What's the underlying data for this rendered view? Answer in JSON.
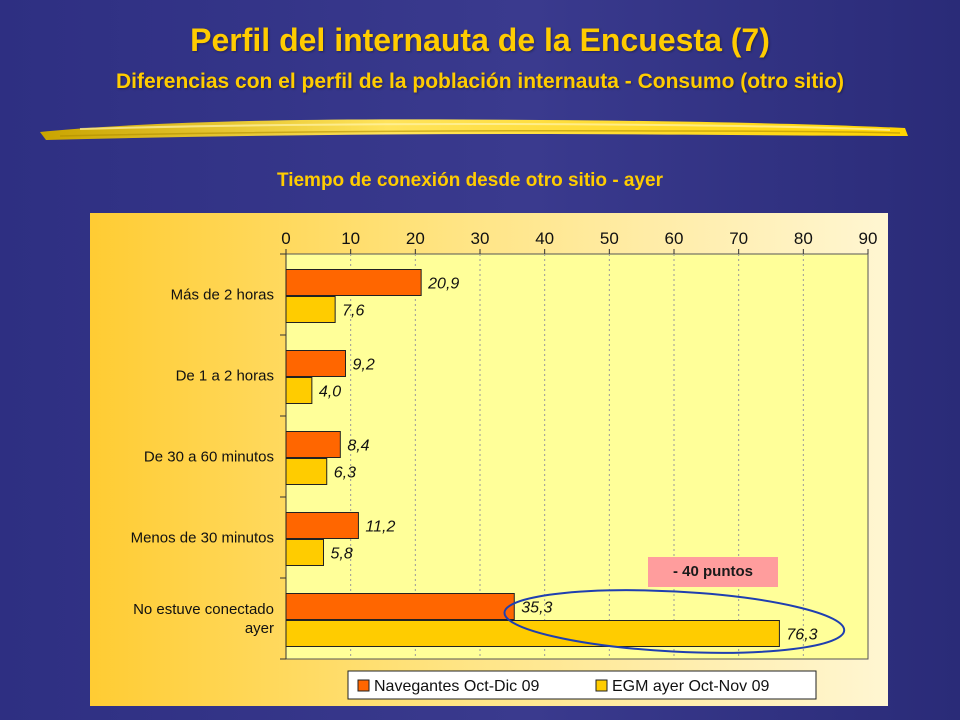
{
  "slide": {
    "title": "Perfil del internauta de la Encuesta (7)",
    "subtitle": "Diferencias con el perfil de la población internauta - Consumo (otro sitio)"
  },
  "annotation": {
    "callout": "- 40 puntos"
  },
  "colors": {
    "background": "#2e2f82",
    "title": "#ffcc00",
    "series_navegantes": "#ff6600",
    "series_egm": "#ffcc00",
    "callout_fill": "#ff9d9d",
    "highlight_ellipse": "#1f3fb0"
  },
  "chart_data": {
    "type": "bar",
    "orientation": "horizontal",
    "title": "Tiempo de conexión desde otro sitio - ayer",
    "categories": [
      "Más de 2 horas",
      "De 1 a 2 horas",
      "De 30 a 60 minutos",
      "Menos de 30 minutos",
      [
        "No estuve conectado",
        "ayer"
      ]
    ],
    "series": [
      {
        "name": "Navegantes Oct-Dic 09",
        "values": [
          20.9,
          9.2,
          8.4,
          11.2,
          35.3
        ],
        "labels": [
          "20,9",
          "9,2",
          "8,4",
          "11,2",
          "35,3"
        ]
      },
      {
        "name": "EGM ayer Oct-Nov 09",
        "values": [
          7.6,
          4.0,
          6.3,
          5.8,
          76.3
        ],
        "labels": [
          "7,6",
          "4,0",
          "6,3",
          "5,8",
          "76,3"
        ]
      }
    ],
    "xlim": [
      0,
      90
    ],
    "ticks": [
      "0",
      "10",
      "20",
      "30",
      "40",
      "50",
      "60",
      "70",
      "80",
      "90"
    ],
    "tick_values": [
      0,
      10,
      20,
      30,
      40,
      50,
      60,
      70,
      80,
      90
    ],
    "axis_position": "top",
    "grid": true,
    "legend_position": "bottom"
  }
}
